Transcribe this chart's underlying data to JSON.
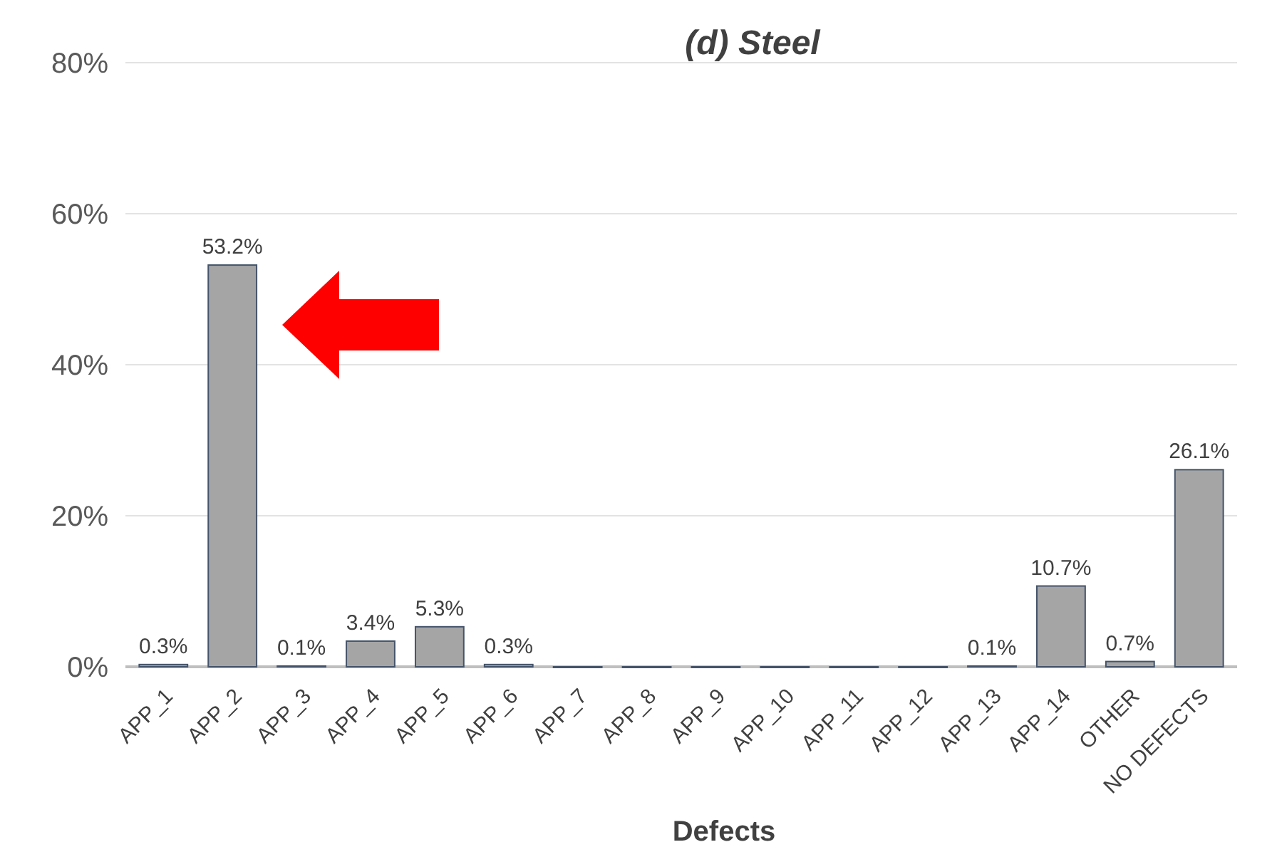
{
  "chart_data": {
    "type": "bar",
    "title": "(d) Steel",
    "xlabel": "Defects",
    "categories": [
      "APP_1",
      "APP_2",
      "APP_3",
      "APP_4",
      "APP_5",
      "APP_6",
      "APP_7",
      "APP_8",
      "APP_9",
      "APP_10",
      "APP_11",
      "APP_12",
      "APP_13",
      "APP_14",
      "OTHER",
      "NO DEFECTS"
    ],
    "values": [
      0.3,
      53.2,
      0.1,
      3.4,
      5.3,
      0.3,
      0,
      0,
      0,
      0,
      0,
      0,
      0.1,
      10.7,
      0.7,
      26.1
    ],
    "value_labels": [
      "0.3%",
      "53.2%",
      "0.1%",
      "3.4%",
      "5.3%",
      "0.3%",
      null,
      null,
      null,
      null,
      null,
      null,
      "0.1%",
      "10.7%",
      "0.7%",
      "26.1%"
    ],
    "color": "#a5a5a5",
    "ylim": [
      0,
      80
    ],
    "yticks": [
      {
        "value": 0,
        "label": "0%"
      },
      {
        "value": 20,
        "label": "20%"
      },
      {
        "value": 40,
        "label": "40%"
      },
      {
        "value": 60,
        "label": "60%"
      },
      {
        "value": 80,
        "label": "80%"
      }
    ],
    "grid": "y"
  }
}
